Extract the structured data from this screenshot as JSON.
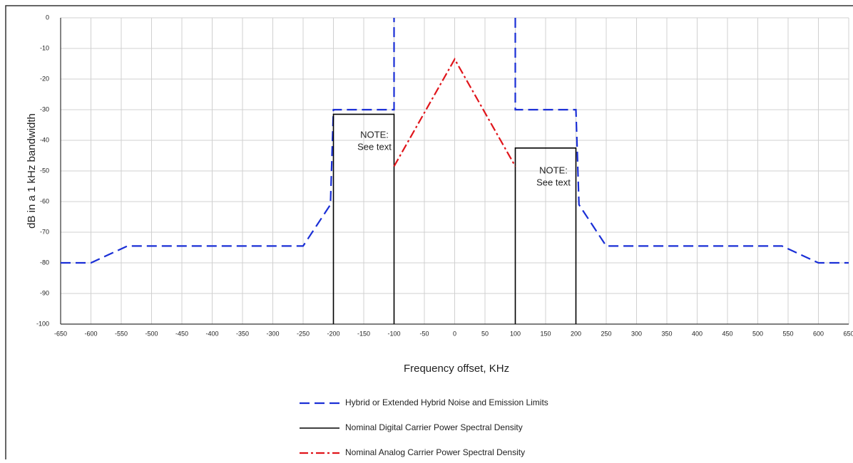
{
  "chart_data": {
    "type": "line",
    "xlabel": "Frequency offset, KHz",
    "ylabel": "dB in a 1 kHz bandwidth",
    "xlim": [
      -650,
      650
    ],
    "ylim": [
      -100,
      0
    ],
    "xticks": [
      -650,
      -600,
      -550,
      -500,
      -450,
      -400,
      -350,
      -300,
      -250,
      -200,
      -150,
      -100,
      -50,
      0,
      50,
      100,
      150,
      200,
      250,
      300,
      350,
      400,
      450,
      500,
      550,
      600,
      650
    ],
    "yticks": [
      0,
      -10,
      -20,
      -30,
      -40,
      -50,
      -60,
      -70,
      -80,
      -90,
      -100
    ],
    "grid": true,
    "series": [
      {
        "name": "Hybrid or Extended Hybrid Noise and Emission Limits",
        "color": "#1a2fd6",
        "dash": "dashed",
        "x": [
          -650,
          -600,
          -540,
          -250,
          -205,
          -200,
          -100,
          -100,
          null,
          100,
          100,
          200,
          205,
          250,
          540,
          600,
          650
        ],
        "values": [
          -80,
          -80,
          -74.5,
          -74.5,
          -61,
          -30,
          -30,
          0,
          null,
          0,
          -30,
          -30,
          -61,
          -74.5,
          -74.5,
          -80,
          -80
        ]
      },
      {
        "name": "Nominal Digital Carrier Power Spectral Density",
        "color": "#000000",
        "dash": "solid",
        "x": [
          -200,
          -200,
          -100,
          -100,
          null,
          100,
          100,
          200,
          200
        ],
        "values": [
          -100,
          -31.5,
          -31.5,
          -100,
          null,
          -100,
          -42.5,
          -42.5,
          -100
        ]
      },
      {
        "name": "Nominal Analog Carrier Power Spectral Density",
        "color": "#e0151b",
        "dash": "dashdot",
        "x": [
          -100,
          0,
          100
        ],
        "values": [
          -48.5,
          -13.5,
          -48.5
        ]
      }
    ],
    "annotations": [
      {
        "lines": [
          "NOTE:",
          "See text"
        ]
      },
      {
        "lines": [
          "NOTE:",
          "See text"
        ]
      }
    ]
  }
}
